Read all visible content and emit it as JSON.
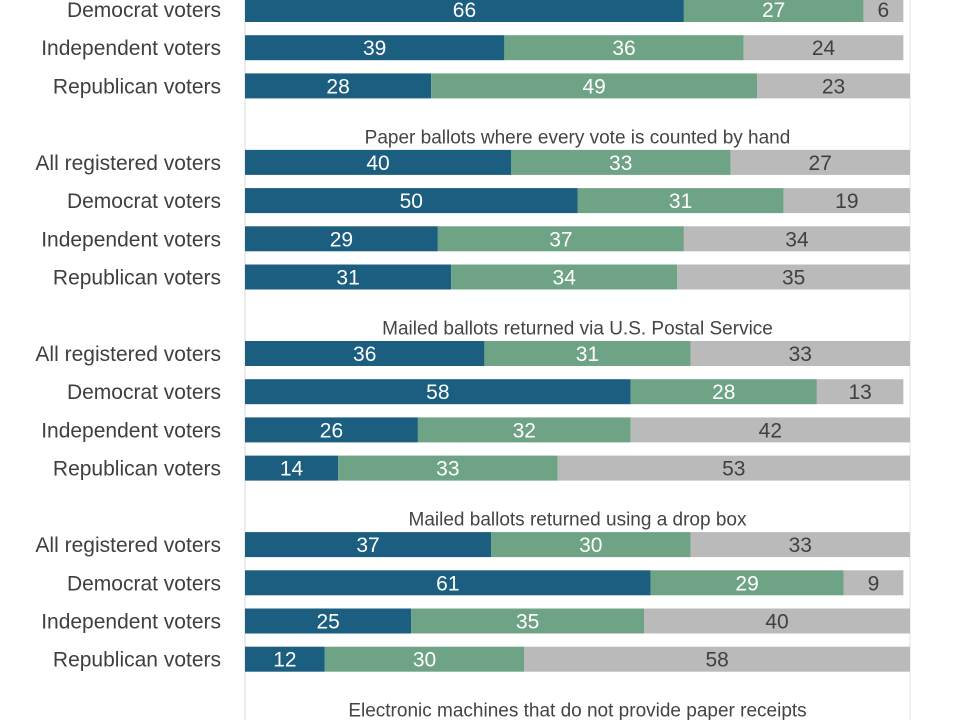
{
  "chart_data": {
    "type": "bar",
    "orientation": "horizontal",
    "stacked": true,
    "colors": {
      "segment_1": "#1b5e80",
      "segment_2": "#6fa386",
      "segment_3": "#bababa",
      "label_light": "#ffffff",
      "label_dark": "#404040"
    },
    "xlim": [
      0,
      100
    ],
    "groups": [
      {
        "title": "",
        "rows": [
          {
            "label": "Democrat voters",
            "values": [
              66,
              27,
              6
            ]
          },
          {
            "label": "Independent voters",
            "values": [
              39,
              36,
              24
            ]
          },
          {
            "label": "Republican voters",
            "values": [
              28,
              49,
              23
            ]
          }
        ]
      },
      {
        "title": "Paper ballots where every vote is counted by hand",
        "rows": [
          {
            "label": "All registered voters",
            "values": [
              40,
              33,
              27
            ]
          },
          {
            "label": "Democrat voters",
            "values": [
              50,
              31,
              19
            ]
          },
          {
            "label": "Independent voters",
            "values": [
              29,
              37,
              34
            ]
          },
          {
            "label": "Republican voters",
            "values": [
              31,
              34,
              35
            ]
          }
        ]
      },
      {
        "title": "Mailed ballots returned via U.S. Postal Service",
        "rows": [
          {
            "label": "All registered voters",
            "values": [
              36,
              31,
              33
            ]
          },
          {
            "label": "Democrat voters",
            "values": [
              58,
              28,
              13
            ]
          },
          {
            "label": "Independent voters",
            "values": [
              26,
              32,
              42
            ]
          },
          {
            "label": "Republican voters",
            "values": [
              14,
              33,
              53
            ]
          }
        ]
      },
      {
        "title": "Mailed ballots returned using a drop box",
        "rows": [
          {
            "label": "All registered voters",
            "values": [
              37,
              30,
              33
            ]
          },
          {
            "label": "Democrat voters",
            "values": [
              61,
              29,
              9
            ]
          },
          {
            "label": "Independent voters",
            "values": [
              25,
              35,
              40
            ]
          },
          {
            "label": "Republican voters",
            "values": [
              12,
              30,
              58
            ]
          }
        ]
      },
      {
        "title": "Electronic machines that do not provide paper receipts",
        "rows": []
      }
    ]
  }
}
